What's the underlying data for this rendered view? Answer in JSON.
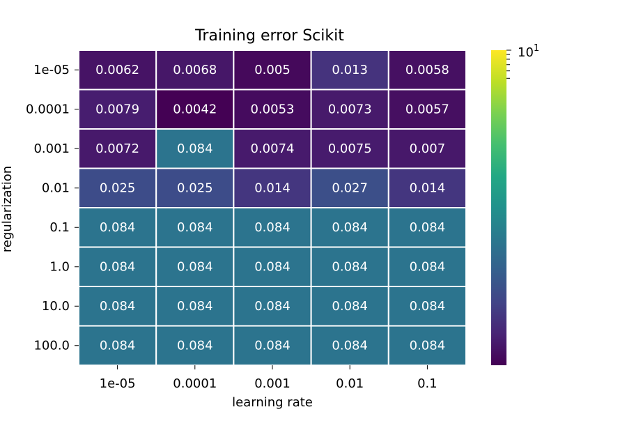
{
  "chart_data": {
    "type": "heatmap",
    "title": "Training error Scikit",
    "xlabel": "learning rate",
    "ylabel": "regularization",
    "x_categories": [
      "1e-05",
      "0.0001",
      "0.001",
      "0.01",
      "0.1"
    ],
    "y_categories": [
      "1e-05",
      "0.0001",
      "0.001",
      "0.01",
      "0.1",
      "1.0",
      "10.0",
      "100.0"
    ],
    "values": [
      [
        0.0062,
        0.0068,
        0.005,
        0.013,
        0.0058
      ],
      [
        0.0079,
        0.0042,
        0.0053,
        0.0073,
        0.0057
      ],
      [
        0.0072,
        0.084,
        0.0074,
        0.0075,
        0.007
      ],
      [
        0.025,
        0.025,
        0.014,
        0.027,
        0.014
      ],
      [
        0.084,
        0.084,
        0.084,
        0.084,
        0.084
      ],
      [
        0.084,
        0.084,
        0.084,
        0.084,
        0.084
      ],
      [
        0.084,
        0.084,
        0.084,
        0.084,
        0.084
      ],
      [
        0.084,
        0.084,
        0.084,
        0.084,
        0.084
      ]
    ],
    "annotations": [
      [
        "0.0062",
        "0.0068",
        "0.005",
        "0.013",
        "0.0058"
      ],
      [
        "0.0079",
        "0.0042",
        "0.0053",
        "0.0073",
        "0.0057"
      ],
      [
        "0.0072",
        "0.084",
        "0.0074",
        "0.0075",
        "0.007"
      ],
      [
        "0.025",
        "0.025",
        "0.014",
        "0.027",
        "0.014"
      ],
      [
        "0.084",
        "0.084",
        "0.084",
        "0.084",
        "0.084"
      ],
      [
        "0.084",
        "0.084",
        "0.084",
        "0.084",
        "0.084"
      ],
      [
        "0.084",
        "0.084",
        "0.084",
        "0.084",
        "0.084"
      ],
      [
        "0.084",
        "0.084",
        "0.084",
        "0.084",
        "0.084"
      ]
    ],
    "colormap": "viridis",
    "color_scale": "log",
    "colorbar": {
      "tick_label_base": "10",
      "tick_label_exp": "1",
      "vmax": 10
    },
    "cell_edge_color": "#ffffff",
    "annotation_color": "#ffffff"
  }
}
